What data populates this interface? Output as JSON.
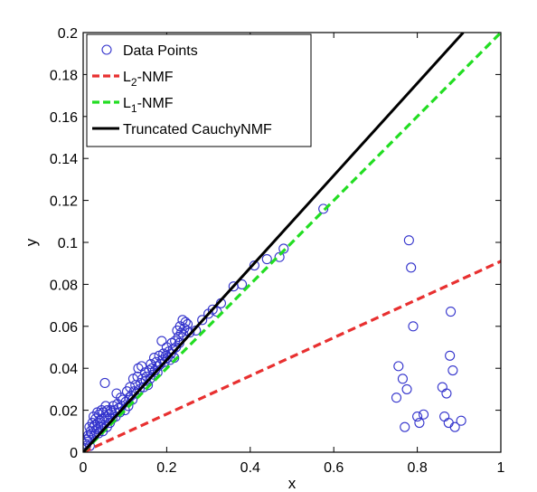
{
  "chart_data": {
    "type": "scatter",
    "xlabel": "x",
    "ylabel": "y",
    "xlim": [
      0,
      1
    ],
    "ylim": [
      0,
      0.2
    ],
    "xticks": [
      0,
      0.2,
      0.4,
      0.6,
      0.8,
      1
    ],
    "xtick_labels": [
      "0",
      "0.2",
      "0.4",
      "0.6",
      "0.8",
      "1"
    ],
    "yticks": [
      0,
      0.02,
      0.04,
      0.06,
      0.08,
      0.1,
      0.12,
      0.14,
      0.16,
      0.18,
      0.2
    ],
    "ytick_labels": [
      "0",
      "0.02",
      "0.04",
      "0.06",
      "0.08",
      "0.1",
      "0.12",
      "0.14",
      "0.16",
      "0.18",
      "0.2"
    ],
    "grid": false,
    "legend_position": "top-left",
    "legend": [
      {
        "prefix": "Data Points",
        "sub": "",
        "suffix": "",
        "style": "marker"
      },
      {
        "prefix": "L",
        "sub": "2",
        "suffix": "-NMF",
        "style": "dashed"
      },
      {
        "prefix": "L",
        "sub": "1",
        "suffix": "-NMF",
        "style": "dashed"
      },
      {
        "prefix": "Truncated CauchyNMF",
        "sub": "",
        "suffix": "",
        "style": "solid"
      }
    ],
    "series": [
      {
        "name": "Data Points",
        "kind": "scatter",
        "color": "#3333cc",
        "points": [
          [
            0.003,
            0.002
          ],
          [
            0.005,
            0.004
          ],
          [
            0.007,
            0.003
          ],
          [
            0.008,
            0.006
          ],
          [
            0.01,
            0.005
          ],
          [
            0.012,
            0.008
          ],
          [
            0.014,
            0.007
          ],
          [
            0.015,
            0.012
          ],
          [
            0.016,
            0.003
          ],
          [
            0.018,
            0.01
          ],
          [
            0.02,
            0.009
          ],
          [
            0.022,
            0.014
          ],
          [
            0.024,
            0.012
          ],
          [
            0.025,
            0.017
          ],
          [
            0.027,
            0.008
          ],
          [
            0.028,
            0.013
          ],
          [
            0.03,
            0.016
          ],
          [
            0.032,
            0.011
          ],
          [
            0.034,
            0.019
          ],
          [
            0.035,
            0.014
          ],
          [
            0.037,
            0.009
          ],
          [
            0.038,
            0.018
          ],
          [
            0.04,
            0.015
          ],
          [
            0.042,
            0.012
          ],
          [
            0.044,
            0.02
          ],
          [
            0.045,
            0.016
          ],
          [
            0.047,
            0.01
          ],
          [
            0.048,
            0.019
          ],
          [
            0.05,
            0.013
          ],
          [
            0.052,
            0.033
          ],
          [
            0.054,
            0.022
          ],
          [
            0.055,
            0.017
          ],
          [
            0.057,
            0.012
          ],
          [
            0.058,
            0.02
          ],
          [
            0.06,
            0.015
          ],
          [
            0.062,
            0.018
          ],
          [
            0.064,
            0.014
          ],
          [
            0.066,
            0.02
          ],
          [
            0.068,
            0.019
          ],
          [
            0.07,
            0.016
          ],
          [
            0.072,
            0.022
          ],
          [
            0.075,
            0.02
          ],
          [
            0.078,
            0.017
          ],
          [
            0.08,
            0.028
          ],
          [
            0.082,
            0.023
          ],
          [
            0.085,
            0.021
          ],
          [
            0.088,
            0.019
          ],
          [
            0.09,
            0.026
          ],
          [
            0.092,
            0.022
          ],
          [
            0.095,
            0.025
          ],
          [
            0.1,
            0.02
          ],
          [
            0.102,
            0.024
          ],
          [
            0.105,
            0.029
          ],
          [
            0.108,
            0.022
          ],
          [
            0.11,
            0.026
          ],
          [
            0.112,
            0.031
          ],
          [
            0.115,
            0.027
          ],
          [
            0.118,
            0.025
          ],
          [
            0.12,
            0.035
          ],
          [
            0.122,
            0.029
          ],
          [
            0.125,
            0.032
          ],
          [
            0.128,
            0.028
          ],
          [
            0.13,
            0.036
          ],
          [
            0.132,
            0.04
          ],
          [
            0.135,
            0.03
          ],
          [
            0.138,
            0.033
          ],
          [
            0.14,
            0.041
          ],
          [
            0.142,
            0.035
          ],
          [
            0.145,
            0.031
          ],
          [
            0.148,
            0.038
          ],
          [
            0.15,
            0.034
          ],
          [
            0.152,
            0.036
          ],
          [
            0.155,
            0.032
          ],
          [
            0.158,
            0.039
          ],
          [
            0.16,
            0.035
          ],
          [
            0.162,
            0.042
          ],
          [
            0.165,
            0.04
          ],
          [
            0.168,
            0.037
          ],
          [
            0.17,
            0.045
          ],
          [
            0.172,
            0.039
          ],
          [
            0.175,
            0.043
          ],
          [
            0.178,
            0.038
          ],
          [
            0.18,
            0.041
          ],
          [
            0.182,
            0.046
          ],
          [
            0.185,
            0.042
          ],
          [
            0.188,
            0.053
          ],
          [
            0.19,
            0.044
          ],
          [
            0.192,
            0.047
          ],
          [
            0.195,
            0.043
          ],
          [
            0.198,
            0.046
          ],
          [
            0.2,
            0.05
          ],
          [
            0.202,
            0.045
          ],
          [
            0.205,
            0.048
          ],
          [
            0.208,
            0.044
          ],
          [
            0.21,
            0.047
          ],
          [
            0.212,
            0.052
          ],
          [
            0.215,
            0.049
          ],
          [
            0.218,
            0.045
          ],
          [
            0.22,
            0.053
          ],
          [
            0.222,
            0.05
          ],
          [
            0.225,
            0.058
          ],
          [
            0.228,
            0.055
          ],
          [
            0.23,
            0.052
          ],
          [
            0.232,
            0.06
          ],
          [
            0.235,
            0.057
          ],
          [
            0.238,
            0.063
          ],
          [
            0.24,
            0.056
          ],
          [
            0.242,
            0.059
          ],
          [
            0.245,
            0.062
          ],
          [
            0.248,
            0.058
          ],
          [
            0.25,
            0.061
          ],
          [
            0.255,
            0.057
          ],
          [
            0.27,
            0.058
          ],
          [
            0.285,
            0.063
          ],
          [
            0.3,
            0.066
          ],
          [
            0.31,
            0.068
          ],
          [
            0.32,
            0.067
          ],
          [
            0.33,
            0.071
          ],
          [
            0.36,
            0.079
          ],
          [
            0.38,
            0.08
          ],
          [
            0.41,
            0.089
          ],
          [
            0.44,
            0.092
          ],
          [
            0.47,
            0.093
          ],
          [
            0.48,
            0.097
          ],
          [
            0.575,
            0.116
          ],
          [
            0.755,
            0.041
          ],
          [
            0.75,
            0.026
          ],
          [
            0.765,
            0.035
          ],
          [
            0.775,
            0.03
          ],
          [
            0.77,
            0.012
          ],
          [
            0.78,
            0.101
          ],
          [
            0.785,
            0.088
          ],
          [
            0.79,
            0.06
          ],
          [
            0.8,
            0.017
          ],
          [
            0.805,
            0.014
          ],
          [
            0.815,
            0.018
          ],
          [
            0.86,
            0.031
          ],
          [
            0.865,
            0.017
          ],
          [
            0.87,
            0.028
          ],
          [
            0.875,
            0.014
          ],
          [
            0.878,
            0.046
          ],
          [
            0.88,
            0.067
          ],
          [
            0.885,
            0.039
          ],
          [
            0.89,
            0.012
          ],
          [
            0.905,
            0.015
          ]
        ]
      },
      {
        "name": "L2-NMF",
        "kind": "line",
        "color": "#e83030",
        "dash": "dashed",
        "points": [
          [
            0,
            0
          ],
          [
            1,
            0.091
          ]
        ]
      },
      {
        "name": "L1-NMF",
        "kind": "line",
        "color": "#22dd22",
        "dash": "dashed",
        "points": [
          [
            0,
            0
          ],
          [
            1,
            0.2
          ]
        ]
      },
      {
        "name": "Truncated CauchyNMF",
        "kind": "line",
        "color": "#000000",
        "dash": "solid",
        "points": [
          [
            0,
            0
          ],
          [
            0.91,
            0.2
          ]
        ]
      }
    ]
  }
}
